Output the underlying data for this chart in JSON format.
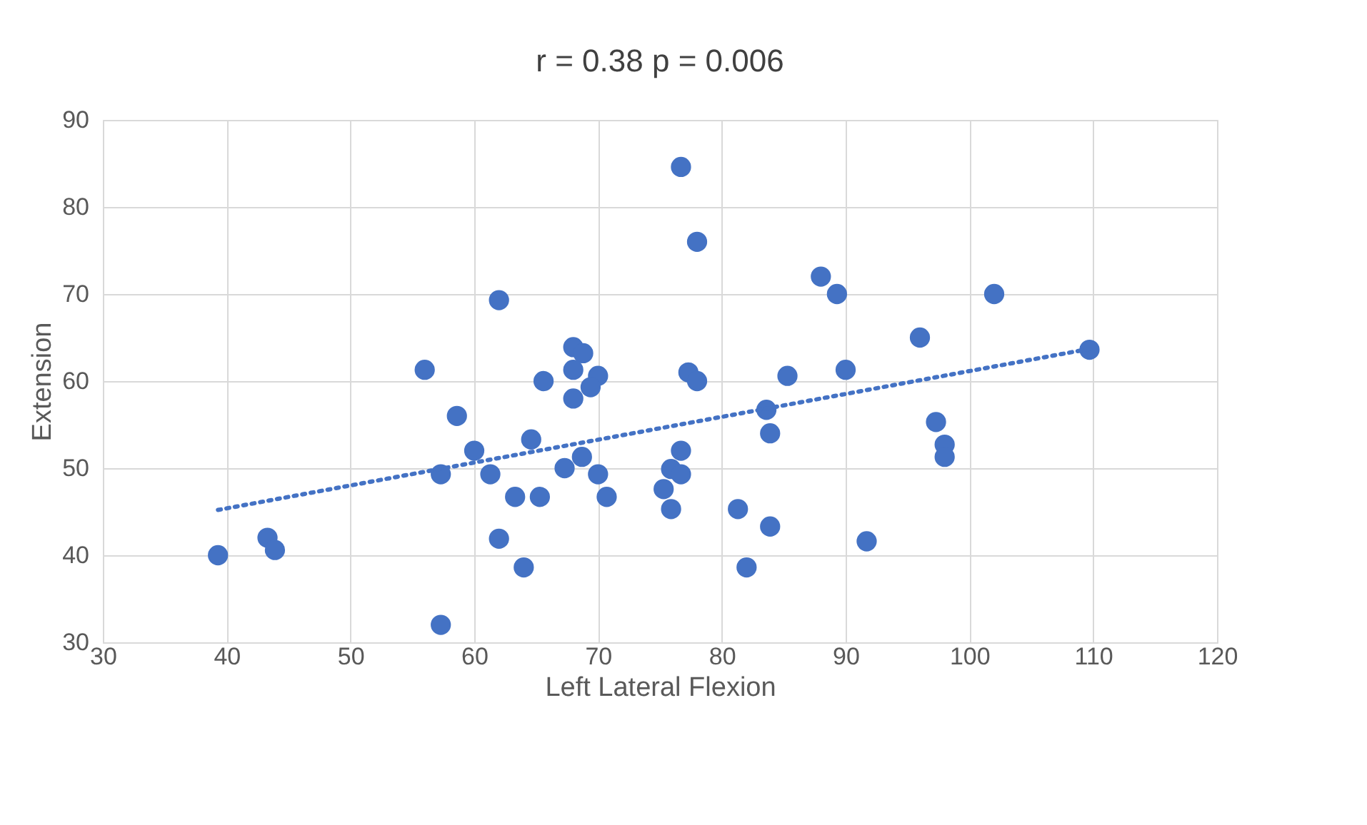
{
  "chart_data": {
    "type": "scatter",
    "title": "r = 0.38 p = 0.006",
    "xlabel": "Left Lateral Flexion",
    "ylabel": "Extension",
    "xlim": [
      30,
      120
    ],
    "xticks": [
      30,
      40,
      50,
      60,
      70,
      80,
      90,
      100,
      110,
      120
    ],
    "ylim": [
      30,
      90
    ],
    "yticks": [
      30,
      40,
      50,
      60,
      70,
      80,
      90
    ],
    "grid": true,
    "series": [
      {
        "color": "#4472c4",
        "marker": "circle",
        "x": [
          39.3,
          43.3,
          43.9,
          56.0,
          58.6,
          60.0,
          57.3,
          61.3,
          62.0,
          62.0,
          64.0,
          57.3,
          63.3,
          65.3,
          64.6,
          65.6,
          68.0,
          68.8,
          68.0,
          68.0,
          70.0,
          69.4,
          68.7,
          67.3,
          70.0,
          70.7,
          76.7,
          78.0,
          88.0,
          89.3,
          102.0,
          96.0,
          109.7,
          77.3,
          78.0,
          85.3,
          90.0,
          83.6,
          83.9,
          97.3,
          98.0,
          98.0,
          76.7,
          75.9,
          76.7,
          75.3,
          75.9,
          81.3,
          83.9,
          91.7,
          82.0
        ],
        "values": [
          40.0,
          42.0,
          40.6,
          61.3,
          56.0,
          52.0,
          49.3,
          49.3,
          69.3,
          41.9,
          38.6,
          32.0,
          46.7,
          46.7,
          53.3,
          60.0,
          63.9,
          63.2,
          61.3,
          58.0,
          60.6,
          59.3,
          51.3,
          50.0,
          49.3,
          46.7,
          84.6,
          76.0,
          72.0,
          70.0,
          70.0,
          65.0,
          63.6,
          61.0,
          60.0,
          60.6,
          61.3,
          56.7,
          54.0,
          55.3,
          52.7,
          51.3,
          52.0,
          49.9,
          49.3,
          47.6,
          45.3,
          45.3,
          43.3,
          41.6,
          38.6
        ]
      },
      {
        "type": "line",
        "color": "#4472c4",
        "line_style": "dotted",
        "marker": "none",
        "x": [
          39.3,
          109.7
        ],
        "values": [
          45.2,
          63.7
        ]
      }
    ]
  }
}
